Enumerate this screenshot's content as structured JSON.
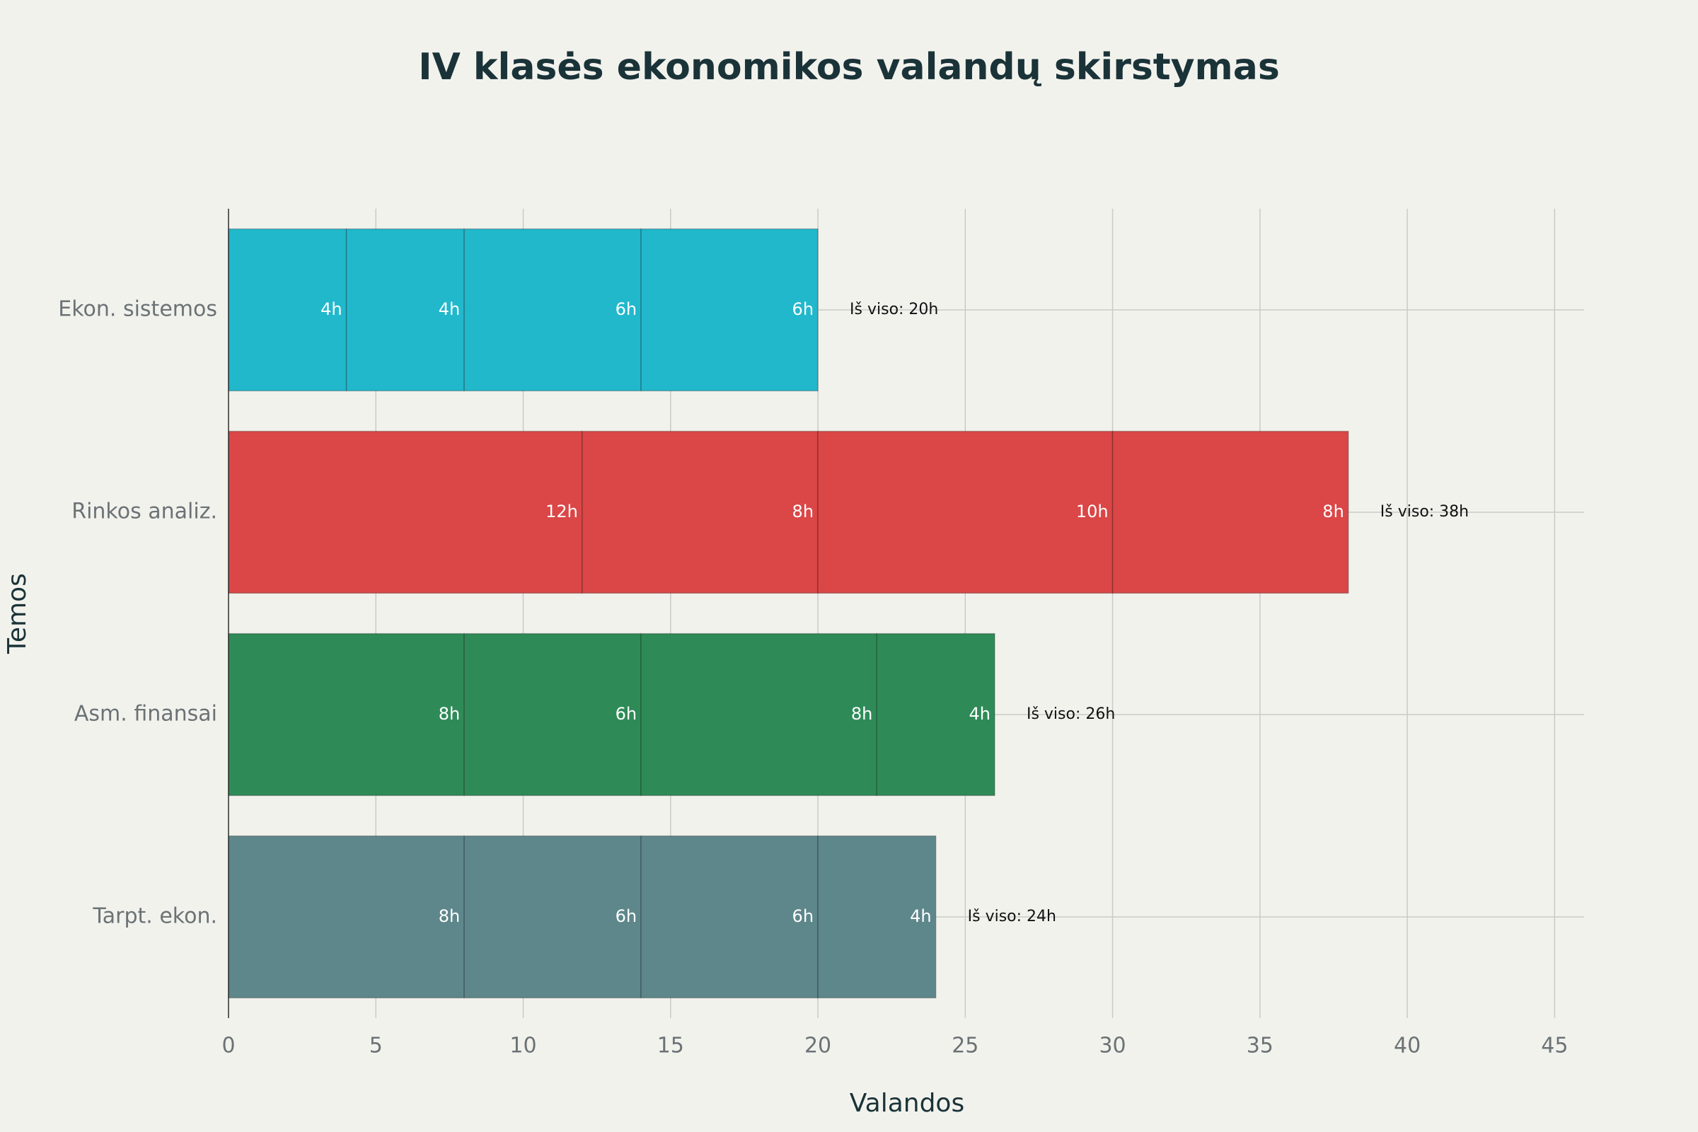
{
  "chart_data": {
    "type": "stacked-bar-horizontal",
    "title": "IV klasės ekonomikos valandų skirstymas",
    "x_label": "Valandos",
    "y_label": "Temos",
    "categories": [
      "Ekon. sistemos",
      "Rinkos analiz.",
      "Asm. finansai",
      "Tarpt. ekon."
    ],
    "colors": [
      "#21b8cc",
      "#db4647",
      "#2e8b57",
      "#5e878b"
    ],
    "series": [
      {
        "values": [
          4,
          12,
          8,
          8
        ],
        "value_labels": [
          "4h",
          "12h",
          "8h",
          "8h"
        ]
      },
      {
        "values": [
          4,
          8,
          6,
          6
        ],
        "value_labels": [
          "4h",
          "8h",
          "6h",
          "6h"
        ]
      },
      {
        "values": [
          6,
          10,
          8,
          6
        ],
        "value_labels": [
          "6h",
          "10h",
          "8h",
          "6h"
        ]
      },
      {
        "values": [
          6,
          8,
          4,
          4
        ],
        "value_labels": [
          "6h",
          "8h",
          "4h",
          "4h"
        ]
      }
    ],
    "total_labels": [
      "Iš viso: 20h",
      "Iš viso: 38h",
      "Iš viso: 26h",
      "Iš viso: 24h"
    ],
    "xlim": [
      0,
      46
    ],
    "xticks": [
      0,
      5,
      10,
      15,
      20,
      25,
      30,
      35,
      40,
      45
    ],
    "grid": true
  }
}
